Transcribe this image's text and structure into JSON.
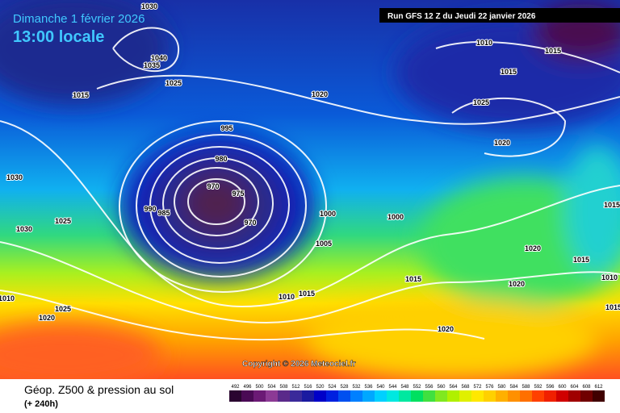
{
  "header": {
    "date": "Dimanche 1 février 2026",
    "time": "13:00 locale",
    "run": "Run GFS 12 Z du Jeudi 22 janvier 2026"
  },
  "isobar_labels": [
    "1030",
    "1040",
    "1035",
    "1025",
    "1015",
    "1020",
    "995",
    "980",
    "970",
    "975",
    "990",
    "985",
    "970",
    "1030",
    "1025",
    "1030",
    "1000",
    "1000",
    "1005",
    "1010",
    "1015",
    "1015",
    "1025",
    "1020",
    "1015",
    "1020",
    "1015",
    "1015",
    "1020",
    "1010",
    "1010",
    "1015",
    "1020",
    "1025",
    "1020",
    "1010",
    "1015"
  ],
  "footer": {
    "copyright": "Copyright © 2026 Meteociel.fr",
    "field": "Géop. Z500 & pression au sol",
    "lead": "(+ 240h)",
    "scale": {
      "labels": [
        492,
        496,
        500,
        504,
        508,
        512,
        516,
        520,
        524,
        528,
        532,
        536,
        540,
        544,
        548,
        552,
        556,
        560,
        564,
        568,
        572,
        576,
        580,
        584,
        588,
        592,
        596,
        600,
        604,
        608,
        612
      ],
      "colors": [
        "#2a0530",
        "#4a0a55",
        "#6b1a75",
        "#8c3a95",
        "#5a2a8a",
        "#3a2a9a",
        "#1a1aa0",
        "#0000c8",
        "#0020e0",
        "#0050f0",
        "#0080ff",
        "#00a8ff",
        "#00d0ff",
        "#00e8e0",
        "#00e8a0",
        "#00e060",
        "#40e040",
        "#80e820",
        "#b0f000",
        "#e0f000",
        "#ffe800",
        "#ffd000",
        "#ffb000",
        "#ff9000",
        "#ff7000",
        "#ff4000",
        "#f02000",
        "#d00000",
        "#a00000",
        "#700000",
        "#400000"
      ]
    }
  }
}
